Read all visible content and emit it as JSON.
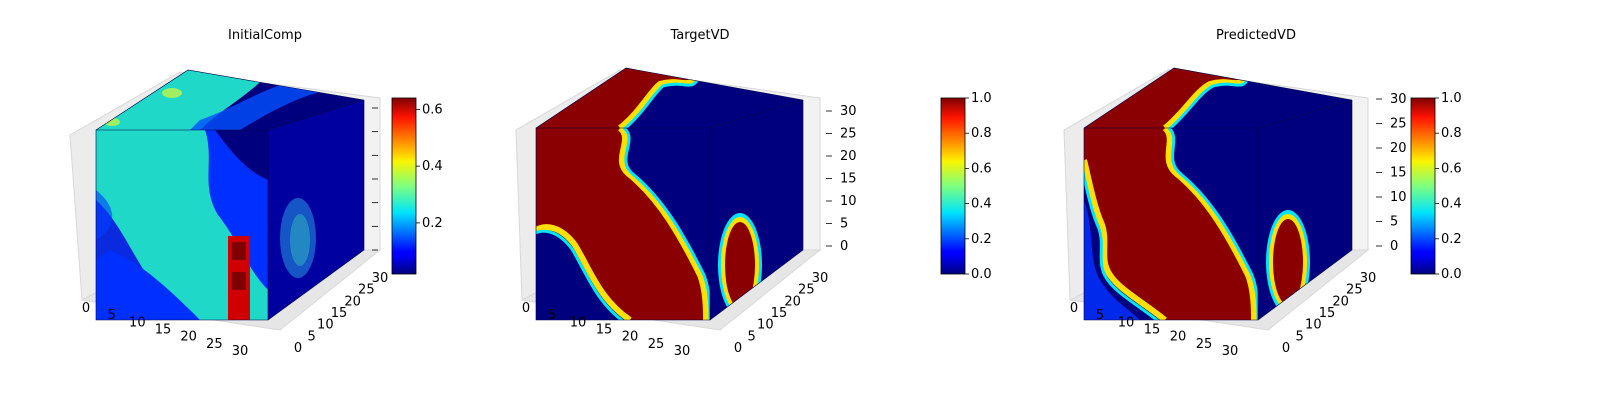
{
  "chart_data": [
    {
      "type": "heatmap",
      "title": "InitialComp",
      "x_ticks": [
        "0",
        "5",
        "10",
        "15",
        "20",
        "25",
        "30"
      ],
      "y_ticks": [
        "0",
        "5",
        "10",
        "15",
        "20",
        "25",
        "30"
      ],
      "z_ticks": [],
      "colorbar": {
        "colormap": "jet",
        "range": [
          0.02,
          0.64
        ],
        "ticks": [
          "0.2",
          "0.4",
          "0.6"
        ],
        "tick_values": [
          0.2,
          0.4,
          0.6
        ]
      },
      "faces": {
        "front": "teal-dominant field (~0.3) with a deep-blue lower-left region and a hot vertical streak (~0.6) near x=25-28",
        "top": "teal band across the back-left with a yellow spot (~0.4), deep blue toward the right",
        "side": "mostly deep blue with a lighter blue-teal blob in the middle"
      }
    },
    {
      "type": "heatmap",
      "title": "TargetVD",
      "x_ticks": [
        "0",
        "5",
        "10",
        "15",
        "20",
        "25",
        "30"
      ],
      "y_ticks": [
        "0",
        "5",
        "10",
        "15",
        "20",
        "25",
        "30"
      ],
      "z_ticks": [
        "0",
        "5",
        "10",
        "15",
        "20",
        "25",
        "30"
      ],
      "colorbar": {
        "colormap": "jet",
        "range": [
          0,
          1
        ],
        "ticks": [
          "0.0",
          "0.2",
          "0.4",
          "0.6",
          "0.8",
          "1.0"
        ],
        "tick_values": [
          0,
          0.2,
          0.4,
          0.6,
          0.8,
          1.0
        ]
      },
      "faces": {
        "front": "saturated red region (1.0) on the left bounded by a sharp S-shaped interface; blue (0.0) on the right",
        "top": "red on the left with an S-curved interface to blue on the right",
        "side": "blue with a red oval region near the bottom-front"
      }
    },
    {
      "type": "heatmap",
      "title": "PredictedVD",
      "x_ticks": [
        "0",
        "5",
        "10",
        "15",
        "20",
        "25",
        "30"
      ],
      "y_ticks": [
        "0",
        "5",
        "10",
        "15",
        "20",
        "25",
        "30"
      ],
      "z_ticks": [
        "0",
        "5",
        "10",
        "15",
        "20",
        "25",
        "30"
      ],
      "colorbar": {
        "colormap": "jet",
        "range": [
          0,
          1
        ],
        "ticks": [
          "0.0",
          "0.2",
          "0.4",
          "0.6",
          "0.8",
          "1.0"
        ],
        "tick_values": [
          0,
          0.2,
          0.4,
          0.6,
          0.8,
          1.0
        ]
      },
      "faces": {
        "front": "red region similar to TargetVD with a wider blue pocket along the lower-left edge",
        "top": "red on the left with an S-curved interface to blue on the right",
        "side": "blue with a red oval region near the bottom-front"
      }
    }
  ]
}
